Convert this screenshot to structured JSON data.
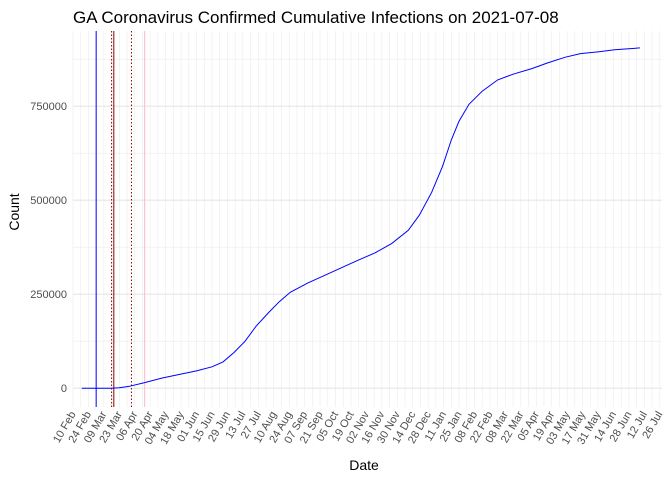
{
  "chart_data": {
    "type": "line",
    "title": "GA Coronavirus Confirmed Cumulative Infections on 2021-07-08",
    "xlabel": "Date",
    "ylabel": "Count",
    "x_start": "2020-02-10",
    "x_end": "2021-07-28",
    "xlim": [
      "2020-02-10",
      "2021-07-28"
    ],
    "ylim": [
      -50000,
      950000
    ],
    "y_ticks": [
      0,
      250000,
      500000,
      750000
    ],
    "y_tick_labels": [
      "0",
      "250000",
      "500000",
      "750000"
    ],
    "x_tick_labels": [
      "10 Feb",
      "24 Feb",
      "09 Mar",
      "23 Mar",
      "06 Apr",
      "20 Apr",
      "04 May",
      "18 May",
      "01 Jun",
      "15 Jun",
      "29 Jun",
      "13 Jul",
      "27 Jul",
      "10 Aug",
      "24 Aug",
      "07 Sep",
      "21 Sep",
      "05 Oct",
      "19 Oct",
      "02 Nov",
      "16 Nov",
      "30 Nov",
      "14 Dec",
      "28 Dec",
      "11 Jan",
      "25 Jan",
      "08 Feb",
      "22 Feb",
      "08 Mar",
      "22 Mar",
      "05 Apr",
      "19 Apr",
      "03 May",
      "17 May",
      "31 May",
      "14 Jun",
      "28 Jun",
      "12 Jul",
      "26 Jul"
    ],
    "grid": true,
    "series": [
      {
        "color": "#0000ff",
        "points": [
          [
            "2020-02-18",
            0
          ],
          [
            "2020-03-02",
            5
          ],
          [
            "2020-03-15",
            100
          ],
          [
            "2020-03-23",
            1000
          ],
          [
            "2020-04-01",
            5000
          ],
          [
            "2020-04-15",
            15000
          ],
          [
            "2020-05-01",
            27000
          ],
          [
            "2020-05-15",
            36000
          ],
          [
            "2020-06-01",
            46000
          ],
          [
            "2020-06-15",
            57000
          ],
          [
            "2020-06-25",
            70000
          ],
          [
            "2020-07-05",
            95000
          ],
          [
            "2020-07-15",
            125000
          ],
          [
            "2020-07-25",
            165000
          ],
          [
            "2020-08-05",
            200000
          ],
          [
            "2020-08-15",
            230000
          ],
          [
            "2020-08-25",
            255000
          ],
          [
            "2020-09-10",
            280000
          ],
          [
            "2020-09-25",
            300000
          ],
          [
            "2020-10-10",
            320000
          ],
          [
            "2020-10-25",
            340000
          ],
          [
            "2020-11-10",
            360000
          ],
          [
            "2020-11-25",
            385000
          ],
          [
            "2020-12-10",
            420000
          ],
          [
            "2020-12-20",
            460000
          ],
          [
            "2020-12-31",
            520000
          ],
          [
            "2021-01-10",
            590000
          ],
          [
            "2021-01-18",
            660000
          ],
          [
            "2021-01-25",
            710000
          ],
          [
            "2021-02-03",
            755000
          ],
          [
            "2021-02-15",
            790000
          ],
          [
            "2021-03-01",
            820000
          ],
          [
            "2021-03-15",
            835000
          ],
          [
            "2021-04-01",
            850000
          ],
          [
            "2021-04-15",
            865000
          ],
          [
            "2021-05-01",
            880000
          ],
          [
            "2021-05-15",
            890000
          ],
          [
            "2021-06-01",
            895000
          ],
          [
            "2021-06-15",
            900000
          ],
          [
            "2021-07-08",
            905000
          ]
        ]
      }
    ],
    "vlines": [
      {
        "date": "2020-03-02",
        "color": "#0000ff",
        "style": "solid"
      },
      {
        "date": "2020-03-16",
        "color": "#8b0000",
        "style": "dotted"
      },
      {
        "date": "2020-03-18",
        "color": "#8b0000",
        "style": "solid"
      },
      {
        "date": "2020-04-03",
        "color": "#8b0000",
        "style": "dotted"
      },
      {
        "date": "2020-04-15",
        "color": "#ffb6c1",
        "style": "solid"
      }
    ]
  }
}
